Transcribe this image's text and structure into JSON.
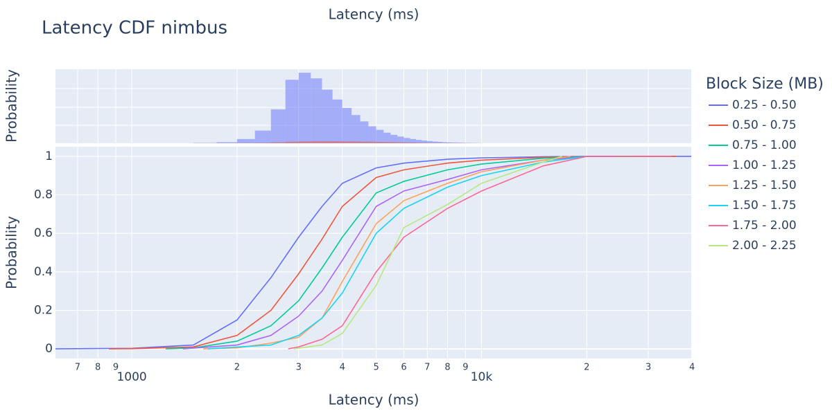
{
  "chart_data": {
    "type": "line",
    "title": "Latency CDF nimbus",
    "x_label": "Latency (ms)",
    "y_label": "Probability",
    "log_x": true,
    "grid": true,
    "xlim": [
      605,
      39800
    ],
    "xticks": [
      {
        "value": 700,
        "label": "7"
      },
      {
        "value": 800,
        "label": "8"
      },
      {
        "value": 900,
        "label": "9"
      },
      1000,
      {
        "value": 2000,
        "label": "2"
      },
      {
        "value": 3000,
        "label": "3"
      },
      {
        "value": 4000,
        "label": "4"
      },
      {
        "value": 5000,
        "label": "5"
      },
      {
        "value": 6000,
        "label": "6"
      },
      {
        "value": 7000,
        "label": "7"
      },
      {
        "value": 8000,
        "label": "8"
      },
      {
        "value": 9000,
        "label": "9"
      },
      {
        "value": 10000,
        "label": "10k"
      },
      {
        "value": 20000,
        "label": "2"
      },
      {
        "value": 30000,
        "label": "3"
      },
      {
        "value": 40000,
        "label": "4"
      }
    ],
    "ylim": [
      -0.05,
      1.05
    ],
    "yticks": [
      0,
      0.2,
      0.4,
      0.6,
      0.8,
      1
    ],
    "legend_title": "Block Size (MB)",
    "legend_position": "right",
    "series": [
      {
        "name": "0.25 - 0.50",
        "color": "#636efa",
        "x": [
          605,
          1000,
          1500,
          2000,
          2500,
          3000,
          3500,
          4000,
          5000,
          6000,
          8000,
          10000,
          15000,
          20000,
          39800
        ],
        "values": [
          0,
          0.003,
          0.02,
          0.15,
          0.37,
          0.58,
          0.74,
          0.86,
          0.94,
          0.965,
          0.985,
          0.992,
          0.998,
          1,
          1
        ]
      },
      {
        "name": "0.50 - 0.75",
        "color": "#EF553B",
        "x": [
          860,
          1000,
          1500,
          2000,
          2500,
          3000,
          3500,
          4000,
          5000,
          6000,
          8000,
          10000,
          15000,
          20000,
          36000
        ],
        "values": [
          0,
          0.001,
          0.01,
          0.07,
          0.2,
          0.39,
          0.57,
          0.74,
          0.89,
          0.93,
          0.965,
          0.98,
          0.995,
          1,
          1
        ]
      },
      {
        "name": "0.75 - 1.00",
        "color": "#00cc96",
        "x": [
          1250,
          1500,
          2000,
          2500,
          3000,
          3500,
          4000,
          5000,
          6000,
          8000,
          10000,
          15000,
          20000,
          27000
        ],
        "values": [
          0,
          0.005,
          0.04,
          0.12,
          0.25,
          0.42,
          0.58,
          0.81,
          0.87,
          0.93,
          0.96,
          0.99,
          1,
          1
        ]
      },
      {
        "name": "1.00 - 1.25",
        "color": "#ab63fa",
        "x": [
          1400,
          2000,
          2500,
          3000,
          3500,
          4000,
          5000,
          6000,
          8000,
          10000,
          15000,
          20000,
          24000
        ],
        "values": [
          0,
          0.02,
          0.07,
          0.17,
          0.3,
          0.46,
          0.74,
          0.82,
          0.88,
          0.93,
          0.98,
          1,
          1
        ]
      },
      {
        "name": "1.25 - 1.50",
        "color": "#FFA15A",
        "x": [
          1600,
          2000,
          2500,
          3000,
          3500,
          4000,
          5000,
          6000,
          8000,
          10000,
          15000,
          18000
        ],
        "values": [
          0,
          0.005,
          0.03,
          0.06,
          0.16,
          0.35,
          0.65,
          0.77,
          0.86,
          0.92,
          0.98,
          1
        ]
      },
      {
        "name": "1.50 - 1.75",
        "color": "#19d3f3",
        "x": [
          1650,
          2500,
          3000,
          3500,
          4000,
          5000,
          6000,
          8000,
          10000,
          15000,
          20000
        ],
        "values": [
          0,
          0.02,
          0.07,
          0.16,
          0.29,
          0.6,
          0.73,
          0.84,
          0.9,
          0.97,
          1
        ]
      },
      {
        "name": "1.75 - 2.00",
        "color": "#FF6692",
        "x": [
          2800,
          3000,
          3500,
          4000,
          5000,
          6000,
          8000,
          10000,
          15000,
          20000,
          35000
        ],
        "values": [
          0,
          0.01,
          0.05,
          0.12,
          0.4,
          0.58,
          0.73,
          0.82,
          0.95,
          1,
          1
        ]
      },
      {
        "name": "2.00 - 2.25",
        "color": "#B6E880",
        "x": [
          2900,
          3500,
          4000,
          5000,
          6000,
          8000,
          10000,
          15000,
          17000
        ],
        "values": [
          0,
          0.02,
          0.08,
          0.33,
          0.63,
          0.75,
          0.86,
          0.97,
          1
        ]
      }
    ],
    "histogram": {
      "type": "histogram",
      "x_label": "Latency (ms)",
      "y_label": "Probability",
      "ylim": [
        0,
        1050
      ],
      "bins": [
        1500,
        1750,
        2000,
        2250,
        2500,
        2750,
        3000,
        3250,
        3500,
        3750,
        4000,
        4250,
        4500,
        4750,
        5000,
        5250,
        5500,
        5750,
        6000,
        6250,
        6500,
        6750,
        7000,
        7250,
        7500,
        7750,
        8000,
        8250,
        8500,
        8750,
        9000,
        9250,
        9500,
        9750,
        10000
      ],
      "series": [
        {
          "color": "#636efa",
          "values": [
            5,
            15,
            60,
            180,
            480,
            900,
            1000,
            920,
            760,
            620,
            500,
            400,
            310,
            240,
            190,
            150,
            120,
            95,
            75,
            60,
            48,
            38,
            30,
            24,
            19,
            15,
            12,
            10,
            8,
            6,
            5,
            4,
            3,
            2
          ]
        },
        {
          "color": "#EF553B",
          "values": [
            0,
            0,
            2,
            6,
            14,
            22,
            28,
            30,
            30,
            29,
            28,
            26,
            24,
            22,
            20,
            18,
            16,
            14,
            12,
            10,
            8,
            6,
            5,
            4,
            3,
            2,
            2,
            1,
            1,
            1,
            0,
            0,
            0,
            0
          ]
        }
      ]
    }
  }
}
